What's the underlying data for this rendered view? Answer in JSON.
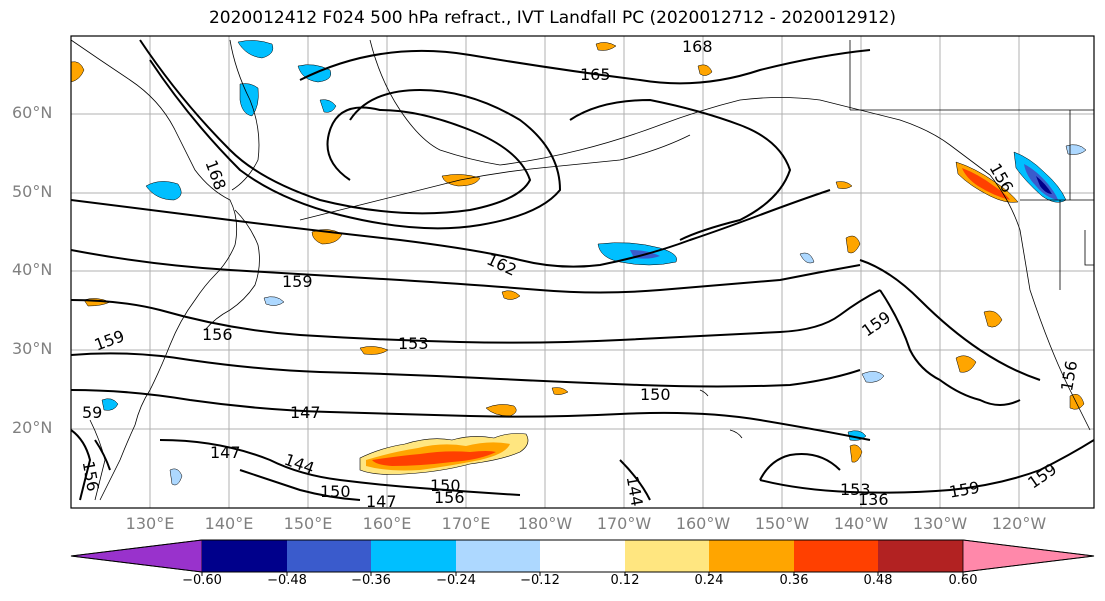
{
  "title": "2020012412 F024 500 hPa refract., IVT Landfall PC (2020012712 - 2020012912)",
  "map": {
    "lat_labels": [
      "60°N",
      "50°N",
      "40°N",
      "30°N",
      "20°N"
    ],
    "lon_labels": [
      "130°E",
      "140°E",
      "150°E",
      "160°E",
      "170°E",
      "180°W",
      "170°W",
      "160°W",
      "150°W",
      "140°W",
      "130°W",
      "120°W"
    ],
    "contour_labels": [
      "168",
      "165",
      "168",
      "162",
      "159",
      "156",
      "153",
      "150",
      "147",
      "147",
      "144",
      "159",
      "159",
      "156",
      "159",
      "153",
      "136",
      "159",
      "156",
      "150",
      "147",
      "150",
      "156",
      "144",
      "59",
      "156"
    ]
  },
  "colorbar": {
    "tick_labels": [
      "−0.60",
      "−0.48",
      "−0.36",
      "−0.24",
      "−0.12",
      "0.12",
      "0.24",
      "0.36",
      "0.48",
      "0.60"
    ],
    "colors": [
      "#9932cc",
      "#00008b",
      "#3a5bcc",
      "#00bfff",
      "#add8ff",
      "#ffffff",
      "#ffe680",
      "#ffa500",
      "#ff4000",
      "#b22222",
      "#ff88aa"
    ]
  }
}
